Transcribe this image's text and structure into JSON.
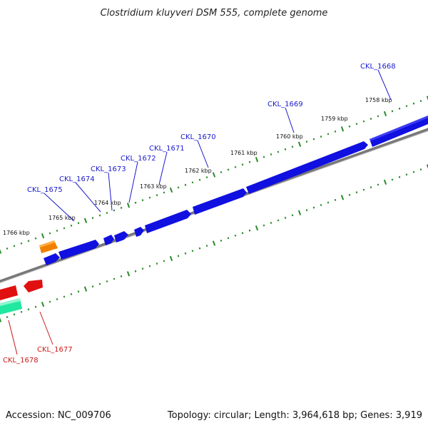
{
  "title": "Clostridium kluyveri DSM 555, complete genome",
  "accession": "Accession: NC_009706",
  "topology": "Topology: circular; Length: 3,964,618 bp; Genes: 3,919",
  "colors": {
    "forward_gene": "#1010e0",
    "reverse_gene": "#e01010",
    "orange_gene": "#f08000",
    "teal_gene": "#20e8a0",
    "backbone": "#7a7a7a",
    "tick": "#2a8a2a",
    "forward_label": "#1a1acc",
    "reverse_label": "#cc1a1a"
  },
  "kbp_labels": [
    {
      "text": "1758 kbp"
    },
    {
      "text": "1759 kbp"
    },
    {
      "text": "1760 kbp"
    },
    {
      "text": "1761 kbp"
    },
    {
      "text": "1762 kbp"
    },
    {
      "text": "1763 kbp"
    },
    {
      "text": "1764 kbp"
    },
    {
      "text": "1765 kbp"
    },
    {
      "text": "1766 kbp"
    }
  ],
  "forward_gene_labels": [
    {
      "text": "CKL_1668"
    },
    {
      "text": "CKL_1669"
    },
    {
      "text": "CKL_1670"
    },
    {
      "text": "CKL_1671"
    },
    {
      "text": "CKL_1672"
    },
    {
      "text": "CKL_1673"
    },
    {
      "text": "CKL_1674"
    },
    {
      "text": "CKL_1675"
    }
  ],
  "reverse_gene_labels": [
    {
      "text": "CKL_1677"
    },
    {
      "text": "CKL_1678"
    }
  ]
}
